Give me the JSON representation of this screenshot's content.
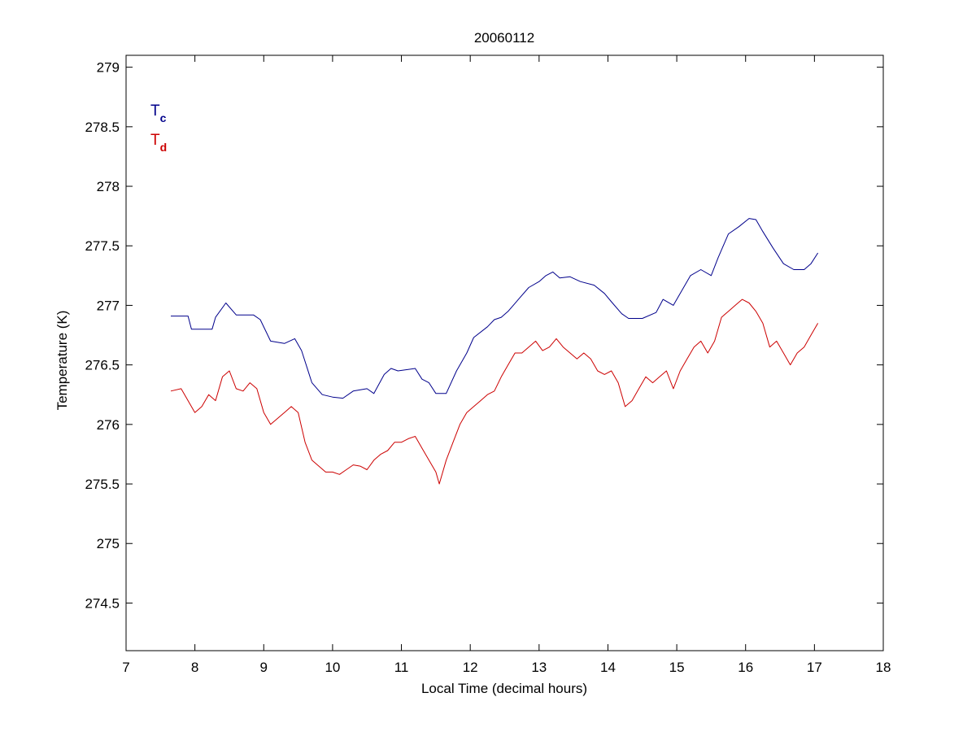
{
  "chart_data": {
    "type": "line",
    "title": "20060112",
    "xlabel": "Local Time (decimal hours)",
    "ylabel": "Temperature (K)",
    "xlim": [
      7,
      18
    ],
    "ylim": [
      274.1,
      279.1
    ],
    "xticks": [
      7,
      8,
      9,
      10,
      11,
      12,
      13,
      14,
      15,
      16,
      17,
      18
    ],
    "yticks": [
      274.5,
      275,
      275.5,
      276,
      276.5,
      277,
      277.5,
      278,
      278.5,
      279
    ],
    "grid": false,
    "legend_placement": "top-left",
    "series": [
      {
        "name": "T",
        "subscript": "c",
        "color": "#00008b",
        "x": [
          7.65,
          7.9,
          7.95,
          8.25,
          8.3,
          8.45,
          8.6,
          8.85,
          8.95,
          9.1,
          9.3,
          9.45,
          9.55,
          9.7,
          9.85,
          10.0,
          10.15,
          10.3,
          10.5,
          10.6,
          10.75,
          10.85,
          10.95,
          11.2,
          11.3,
          11.4,
          11.5,
          11.65,
          11.8,
          11.95,
          12.05,
          12.25,
          12.35,
          12.45,
          12.55,
          12.7,
          12.85,
          13.0,
          13.1,
          13.2,
          13.3,
          13.45,
          13.6,
          13.8,
          13.95,
          14.05,
          14.2,
          14.3,
          14.5,
          14.7,
          14.8,
          14.95,
          15.05,
          15.2,
          15.35,
          15.5,
          15.6,
          15.75,
          15.9,
          16.05,
          16.15,
          16.25,
          16.4,
          16.55,
          16.7,
          16.85,
          16.95,
          17.05
        ],
        "y": [
          276.91,
          276.91,
          276.8,
          276.8,
          276.9,
          277.02,
          276.92,
          276.92,
          276.88,
          276.7,
          276.68,
          276.72,
          276.62,
          276.35,
          276.25,
          276.23,
          276.22,
          276.28,
          276.3,
          276.26,
          276.42,
          276.47,
          276.45,
          276.47,
          276.38,
          276.35,
          276.26,
          276.26,
          276.45,
          276.6,
          276.73,
          276.82,
          276.88,
          276.9,
          276.95,
          277.05,
          277.15,
          277.2,
          277.25,
          277.28,
          277.23,
          277.24,
          277.2,
          277.17,
          277.1,
          277.03,
          276.93,
          276.89,
          276.89,
          276.94,
          277.05,
          277.0,
          277.1,
          277.25,
          277.3,
          277.25,
          277.4,
          277.6,
          277.66,
          277.73,
          277.72,
          277.62,
          277.48,
          277.35,
          277.3,
          277.3,
          277.35,
          277.44
        ]
      },
      {
        "name": "T",
        "subscript": "d",
        "color": "#cc0000",
        "x": [
          7.65,
          7.8,
          7.9,
          8.0,
          8.1,
          8.2,
          8.3,
          8.4,
          8.5,
          8.6,
          8.7,
          8.8,
          8.9,
          9.0,
          9.1,
          9.2,
          9.3,
          9.4,
          9.5,
          9.6,
          9.7,
          9.8,
          9.9,
          10.0,
          10.1,
          10.2,
          10.3,
          10.4,
          10.5,
          10.6,
          10.7,
          10.8,
          10.9,
          11.0,
          11.1,
          11.2,
          11.3,
          11.4,
          11.5,
          11.55,
          11.65,
          11.75,
          11.85,
          11.95,
          12.05,
          12.15,
          12.25,
          12.35,
          12.45,
          12.55,
          12.65,
          12.75,
          12.85,
          12.95,
          13.05,
          13.15,
          13.25,
          13.35,
          13.45,
          13.55,
          13.65,
          13.75,
          13.85,
          13.95,
          14.05,
          14.15,
          14.25,
          14.35,
          14.45,
          14.55,
          14.65,
          14.75,
          14.85,
          14.95,
          15.05,
          15.15,
          15.25,
          15.35,
          15.45,
          15.55,
          15.65,
          15.75,
          15.85,
          15.95,
          16.05,
          16.15,
          16.25,
          16.35,
          16.45,
          16.55,
          16.65,
          16.75,
          16.85,
          16.95,
          17.05
        ],
        "y": [
          276.28,
          276.3,
          276.2,
          276.1,
          276.15,
          276.25,
          276.2,
          276.4,
          276.45,
          276.3,
          276.28,
          276.35,
          276.3,
          276.1,
          276.0,
          276.05,
          276.1,
          276.15,
          276.1,
          275.85,
          275.7,
          275.65,
          275.6,
          275.6,
          275.58,
          275.62,
          275.66,
          275.65,
          275.62,
          275.7,
          275.75,
          275.78,
          275.85,
          275.85,
          275.88,
          275.9,
          275.8,
          275.7,
          275.6,
          275.5,
          275.7,
          275.85,
          276.0,
          276.1,
          276.15,
          276.2,
          276.25,
          276.28,
          276.4,
          276.5,
          276.6,
          276.6,
          276.65,
          276.7,
          276.62,
          276.65,
          276.72,
          276.65,
          276.6,
          276.55,
          276.6,
          276.55,
          276.45,
          276.42,
          276.45,
          276.35,
          276.15,
          276.2,
          276.3,
          276.4,
          276.35,
          276.4,
          276.45,
          276.3,
          276.45,
          276.55,
          276.65,
          276.7,
          276.6,
          276.7,
          276.9,
          276.95,
          277.0,
          277.05,
          277.02,
          276.95,
          276.85,
          276.65,
          276.7,
          276.6,
          276.5,
          276.6,
          276.65,
          276.75,
          276.85
        ]
      }
    ]
  }
}
